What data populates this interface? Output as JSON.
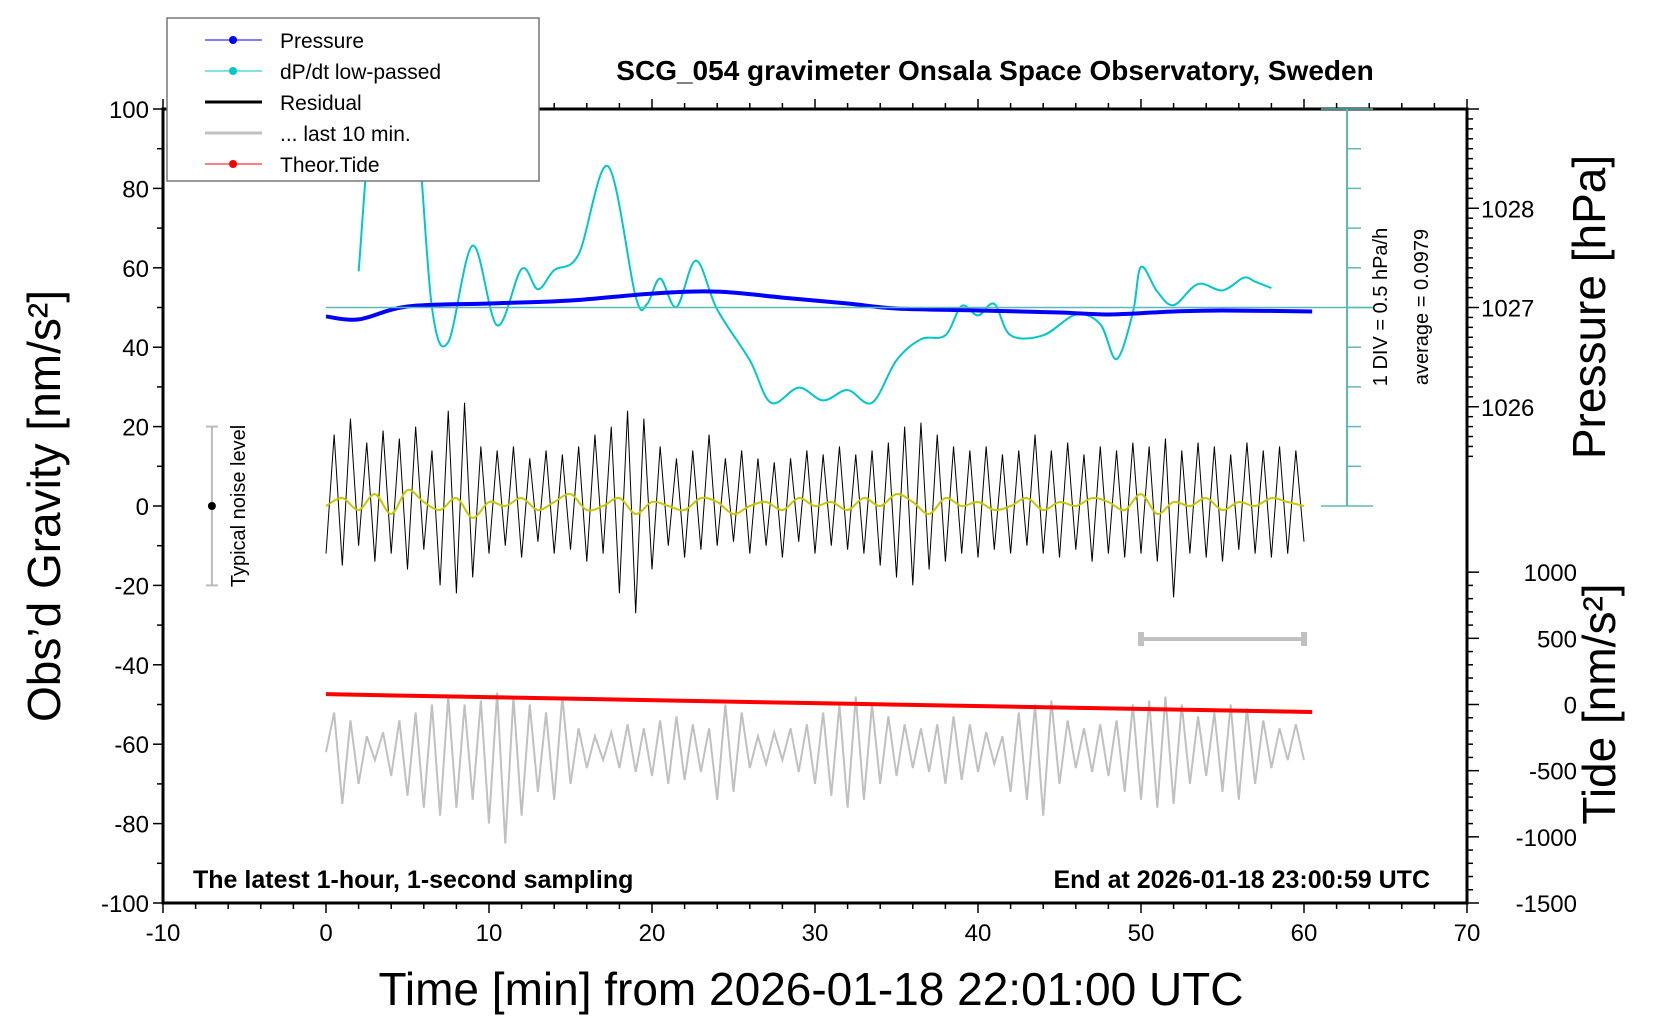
{
  "chart_data": {
    "type": "line",
    "title": "SCG_054 gravimeter Onsala Space Observatory, Sweden",
    "xlabel": "Time [min] from 2026-01-18 22:01:00 UTC",
    "ylabel": "Obs’d Gravity [nm/s²]",
    "y2label_pressure": "Pressure [hPa]",
    "y2label_tide": "Tide [nm/s²]",
    "xlim": [
      -10,
      70
    ],
    "ylim": [
      -100,
      100
    ],
    "xticks": [
      "-10",
      "0",
      "10",
      "20",
      "30",
      "40",
      "50",
      "60",
      "70"
    ],
    "yticks": [
      "100",
      "80",
      "60",
      "40",
      "20",
      "0",
      "-20",
      "-40",
      "-60",
      "-80",
      "-100"
    ],
    "pressure_ticks": [
      "1028",
      "1027",
      "1026"
    ],
    "tide_ticks": [
      "1000",
      "500",
      "0",
      "-500",
      "-1000",
      "-1500"
    ],
    "bottom_left_note": "The latest 1-hour, 1-second sampling",
    "bottom_right_note": "End at 2026-01-18 23:00:59 UTC",
    "noise_label": "Typical noise level",
    "dpdt_scale_label": "1 DIV = 0.5 hPa/h",
    "dpdt_average_label": "average = 0.0979",
    "legend": [
      {
        "label": "Pressure",
        "color": "#0000ff",
        "marker": true
      },
      {
        "label": "dP/dt low-passed",
        "color": "#00c8c8",
        "marker": true
      },
      {
        "label": "Residual",
        "color": "#000000",
        "marker": false
      },
      {
        "label": "... last 10 min.",
        "color": "#c0c0c0",
        "marker": false
      },
      {
        "label": "Theor.Tide",
        "color": "#ff0000",
        "marker": true
      }
    ],
    "legend_placement": "top-left",
    "colors": {
      "pressure": "#0000ff",
      "dpdt": "#00c8c8",
      "dpdt_axis": "#5fb8b8",
      "residual": "#000000",
      "lowpass": "#c8c800",
      "last10": "#c0c0c0",
      "tide": "#ff0000"
    },
    "pressure_hPa": [
      [
        0,
        1026.91
      ],
      [
        2,
        1026.88
      ],
      [
        5,
        1027.01
      ],
      [
        10,
        1027.04
      ],
      [
        15,
        1027.07
      ],
      [
        20,
        1027.14
      ],
      [
        24,
        1027.16
      ],
      [
        28,
        1027.1
      ],
      [
        32,
        1027.04
      ],
      [
        35,
        1026.99
      ],
      [
        40,
        1026.97
      ],
      [
        45,
        1026.95
      ],
      [
        48,
        1026.93
      ],
      [
        52,
        1026.96
      ],
      [
        55,
        1026.97
      ],
      [
        60.5,
        1026.96
      ]
    ],
    "dpdt_hPa_per_h": [
      [
        2,
        0.553
      ],
      [
        3,
        2.848
      ],
      [
        4.5,
        3.098
      ],
      [
        5.5,
        2.598
      ],
      [
        6.5,
        0.098
      ],
      [
        7.5,
        -0.337
      ],
      [
        9,
        0.878
      ],
      [
        10.5,
        -0.127
      ],
      [
        12,
        0.583
      ],
      [
        13,
        0.328
      ],
      [
        14,
        0.568
      ],
      [
        15.5,
        0.768
      ],
      [
        17.3,
        1.878
      ],
      [
        19,
        0.233
      ],
      [
        19.7,
        0.143
      ],
      [
        20.5,
        0.463
      ],
      [
        21.5,
        0.103
      ],
      [
        22.7,
        0.688
      ],
      [
        24,
        0.073
      ],
      [
        26,
        -0.567
      ],
      [
        27.3,
        -1.102
      ],
      [
        29,
        -0.912
      ],
      [
        30.5,
        -1.072
      ],
      [
        32,
        -0.942
      ],
      [
        33.5,
        -1.102
      ],
      [
        35,
        -0.567
      ],
      [
        36.5,
        -0.302
      ],
      [
        38,
        -0.252
      ],
      [
        39,
        0.118
      ],
      [
        40,
        -0.002
      ],
      [
        41,
        0.143
      ],
      [
        42,
        -0.252
      ],
      [
        44,
        -0.252
      ],
      [
        46,
        0.008
      ],
      [
        47.5,
        -0.112
      ],
      [
        48.5,
        -0.552
      ],
      [
        49.5,
        0.033
      ],
      [
        50,
        0.608
      ],
      [
        51,
        0.298
      ],
      [
        52,
        0.128
      ],
      [
        53.5,
        0.393
      ],
      [
        55,
        0.313
      ],
      [
        56.3,
        0.473
      ],
      [
        57,
        0.423
      ],
      [
        58,
        0.343
      ]
    ],
    "tide_nm_s2": [
      [
        0,
        78
      ],
      [
        30,
        10
      ],
      [
        60.5,
        -57
      ]
    ],
    "residual_time_range": [
      0,
      60
    ],
    "residual": [
      -12,
      18,
      -15,
      22,
      -10,
      16,
      -14,
      19,
      -12,
      17,
      -16,
      20,
      -11,
      14,
      -20,
      24,
      -22,
      26,
      -18,
      15,
      -12,
      14,
      -10,
      15,
      -13,
      12,
      -9,
      14,
      -12,
      13,
      -11,
      15,
      -14,
      18,
      -12,
      20,
      -22,
      24,
      -27,
      22,
      -16,
      15,
      -10,
      12,
      -13,
      14,
      -11,
      18,
      -10,
      12,
      -9,
      14,
      -12,
      12,
      -10,
      11,
      -13,
      12,
      -9,
      14,
      -12,
      13,
      -10,
      15,
      -11,
      13,
      -12,
      14,
      -15,
      16,
      -18,
      20,
      -20,
      21,
      -16,
      18,
      -14,
      15,
      -12,
      14,
      -13,
      15,
      -11,
      13,
      -12,
      14,
      -10,
      18,
      -12,
      14,
      -13,
      16,
      -11,
      13,
      -14,
      15,
      -12,
      14,
      -13,
      16,
      -12,
      15,
      -14,
      17,
      -23,
      14,
      -12,
      16,
      -13,
      15,
      -14,
      13,
      -11,
      16,
      -12,
      14,
      -13,
      15,
      -12,
      14,
      -9
    ],
    "residual_lowpass": [
      0,
      2,
      -1,
      3,
      -2,
      4,
      1,
      -1,
      2,
      -3,
      1,
      0,
      2,
      -1,
      1,
      3,
      -1,
      0,
      2,
      -2,
      1,
      0,
      -1,
      2,
      1,
      -2,
      0,
      1,
      -1,
      2,
      0,
      1,
      -1,
      2,
      0,
      3,
      1,
      -2,
      2,
      0,
      1,
      -1,
      0,
      2,
      -1,
      1,
      0,
      2,
      1,
      -1,
      3,
      -2,
      1,
      0,
      2,
      -1,
      1,
      0,
      2,
      1,
      0
    ],
    "last10_curve": [
      -62,
      -52,
      -75,
      -54,
      -70,
      -58,
      -64,
      -57,
      -68,
      -54,
      -73,
      -52,
      -76,
      -50,
      -78,
      -48,
      -76,
      -50,
      -74,
      -49,
      -80,
      -47,
      -85,
      -48,
      -78,
      -50,
      -72,
      -52,
      -74,
      -48,
      -70,
      -56,
      -66,
      -58,
      -64,
      -57,
      -66,
      -55,
      -67,
      -56,
      -68,
      -54,
      -70,
      -53,
      -69,
      -55,
      -67,
      -56,
      -74,
      -50,
      -72,
      -52,
      -66,
      -58,
      -65,
      -57,
      -64,
      -56,
      -67,
      -55,
      -70,
      -52,
      -73,
      -50,
      -76,
      -48,
      -74,
      -50,
      -70,
      -53,
      -68,
      -55,
      -66,
      -56,
      -67,
      -55,
      -70,
      -53,
      -69,
      -55,
      -67,
      -57,
      -65,
      -58,
      -72,
      -52,
      -74,
      -50,
      -78,
      -49,
      -70,
      -54,
      -66,
      -56,
      -67,
      -55,
      -68,
      -54,
      -72,
      -50,
      -74,
      -49,
      -76,
      -48,
      -75,
      -50,
      -70,
      -53,
      -68,
      -52,
      -72,
      -50,
      -74,
      -51,
      -70,
      -54,
      -66,
      -56,
      -64,
      -55,
      -64
    ],
    "last10_window_min": [
      50,
      60
    ],
    "noise_level_range": [
      -20,
      20
    ]
  }
}
